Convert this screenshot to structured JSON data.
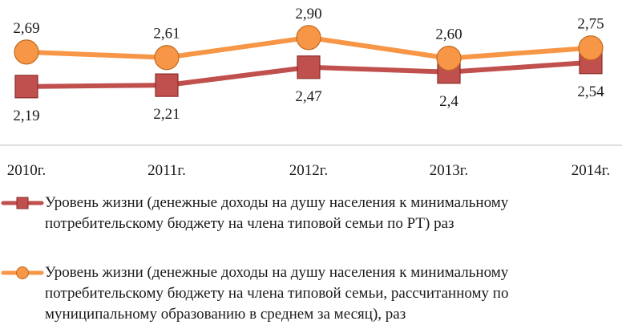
{
  "chart_data": {
    "type": "line",
    "categories": [
      "2010г.",
      "2011г.",
      "2012г.",
      "2013г.",
      "2014г."
    ],
    "series": [
      {
        "name": "Уровень жизни (денежные доходы на  душу  населения к минимальному потребительскому бюджету на члена типовой семьи по РТ) раз",
        "values": [
          2.19,
          2.21,
          2.47,
          2.4,
          2.54
        ],
        "labels": [
          "2,19",
          "2,21",
          "2,47",
          "2,4",
          "2,54"
        ],
        "color": "#c0504d",
        "marker": "square"
      },
      {
        "name": "Уровень жизни (денежные доходы на душу населения к минимальному потребительскому бюджету на члена типовой семьи, рассчитанному по муниципальному образованию в среднем за месяц), раз",
        "values": [
          2.69,
          2.61,
          2.9,
          2.6,
          2.75
        ],
        "labels": [
          "2,69",
          "2,61",
          "2,90",
          "2,60",
          "2,75"
        ],
        "color": "#f79646",
        "marker": "circle"
      }
    ]
  }
}
